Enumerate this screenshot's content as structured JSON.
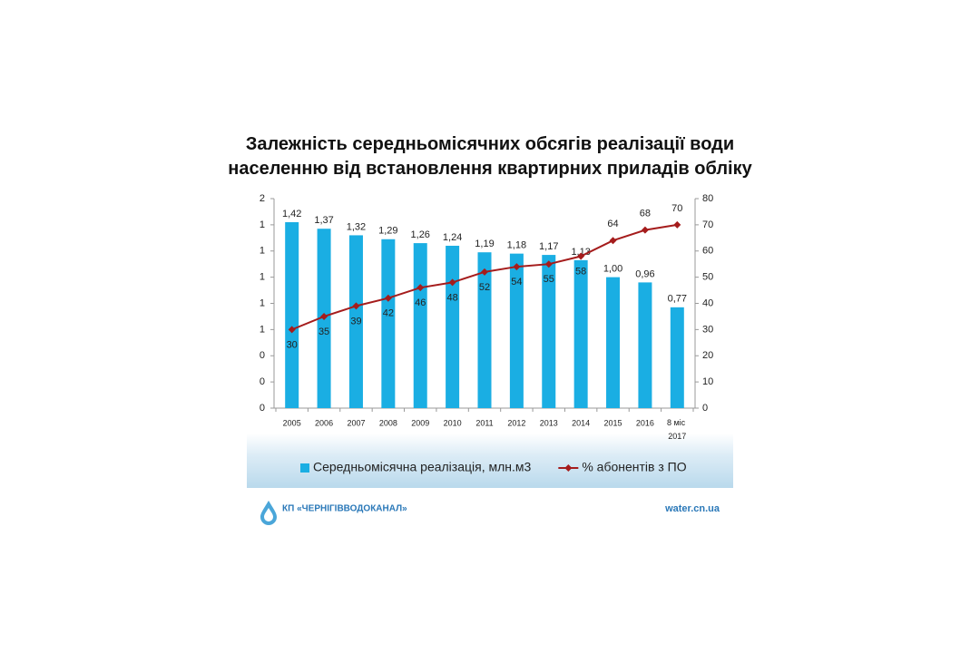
{
  "chart_data": {
    "type": "bar_line",
    "title": "Залежність середньомісячних обсягів реалізації води\nнаселенню від встановлення квартирних  приладів обліку",
    "categories": [
      "2005",
      "2006",
      "2007",
      "2008",
      "2009",
      "2010",
      "2011",
      "2012",
      "2013",
      "2014",
      "2015",
      "2016",
      "8 міс 2017"
    ],
    "series": [
      {
        "name": "Середньомісячна реалізація, млн.м3",
        "color": "#1aaee3",
        "kind": "bar",
        "values": [
          1.42,
          1.37,
          1.32,
          1.29,
          1.26,
          1.24,
          1.19,
          1.18,
          1.17,
          1.13,
          1.0,
          0.96,
          0.77
        ],
        "value_labels": [
          "1,42",
          "1,37",
          "1,32",
          "1,29",
          "1,26",
          "1,24",
          "1,19",
          "1,18",
          "1,17",
          "1,13",
          "1,00",
          "0,96",
          "0,77"
        ]
      },
      {
        "name": "% абонентів з ПО",
        "color": "#a51c1c",
        "kind": "line",
        "axis": "y2",
        "values": [
          30,
          35,
          39,
          42,
          46,
          48,
          52,
          54,
          55,
          58,
          64,
          68,
          70
        ]
      }
    ],
    "ylim": [
      0,
      1.6
    ],
    "yticks": [
      {
        "value": 0,
        "label": "0"
      },
      {
        "value": 0.2,
        "label": "0"
      },
      {
        "value": 0.4,
        "label": "0"
      },
      {
        "value": 0.6,
        "label": "1"
      },
      {
        "value": 0.8,
        "label": "1"
      },
      {
        "value": 1.0,
        "label": "1"
      },
      {
        "value": 1.2,
        "label": "1"
      },
      {
        "value": 1.4,
        "label": "1"
      },
      {
        "value": 1.6,
        "label": "2"
      }
    ],
    "y2lim": [
      0,
      80
    ],
    "y2ticks": [
      0,
      10,
      20,
      30,
      40,
      50,
      60,
      70,
      80
    ],
    "legend": "bottom"
  },
  "footer": {
    "company": "КП «ЧЕРНІГІВВОДОКАНАЛ»",
    "website": "water.cn.ua"
  }
}
